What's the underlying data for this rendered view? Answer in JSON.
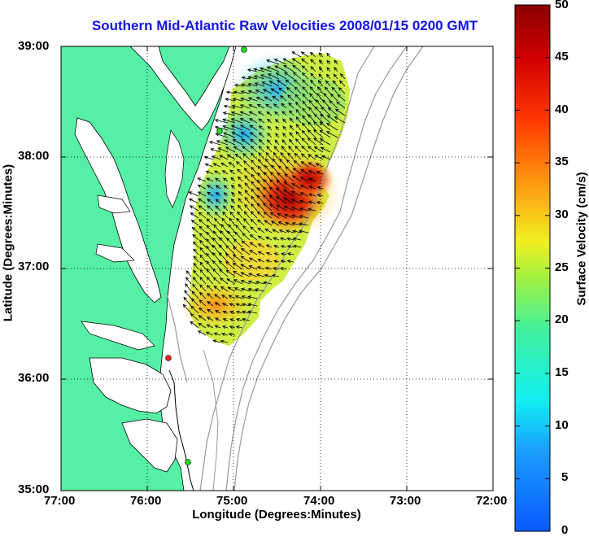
{
  "title": "Southern Mid-Atlantic Raw Velocities 2008/01/15 0200 GMT",
  "x_axis": {
    "label": "Longitude (Degrees:Minutes)",
    "ticks": [
      "77:00",
      "76:00",
      "75:00",
      "74:00",
      "73:00",
      "72:00"
    ]
  },
  "y_axis": {
    "label": "Latitude (Degrees:Minutes)",
    "ticks": [
      "39:00",
      "38:00",
      "37:00",
      "36:00",
      "35:00"
    ]
  },
  "colorbar": {
    "label": "Surface Velocity (cm/s)",
    "ticks": [
      "50",
      "45",
      "40",
      "35",
      "30",
      "25",
      "20",
      "15",
      "10",
      "5",
      "0"
    ],
    "min": 0,
    "max": 50
  },
  "colors": {
    "title": "#1414e6",
    "land": "#55f0a5",
    "coastline": "#000000",
    "bathymetry": "#999999",
    "station_green": "#22dd22",
    "station_red": "#ee2222"
  }
}
